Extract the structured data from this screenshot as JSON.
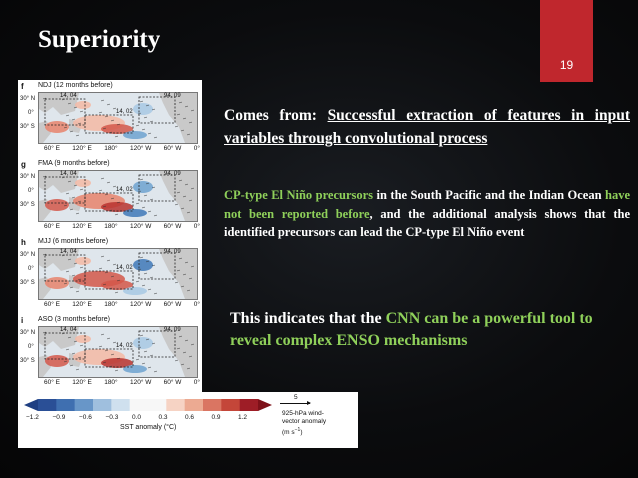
{
  "slide": {
    "title": "Superiority",
    "page_number": "19",
    "accent_color": "#c0272d",
    "highlight_color": "#8fd05a"
  },
  "figure": {
    "panels": [
      {
        "letter": "f",
        "label": "NDJ (12 months before)"
      },
      {
        "letter": "g",
        "label": "FMA (9 months before)"
      },
      {
        "letter": "h",
        "label": "MJJ (6 months before)"
      },
      {
        "letter": "i",
        "label": "ASO (3 months before)"
      }
    ],
    "lat_labels": [
      "30° N",
      "0°",
      "30° S"
    ],
    "lon_labels": [
      "60° E",
      "120° E",
      "180°",
      "120° W",
      "60° W",
      "0°"
    ],
    "box_labels": [
      "14, 04",
      "14, 02",
      "94, 09"
    ],
    "colorbar": {
      "ticks": [
        "−1.2",
        "−0.9",
        "−0.6",
        "−0.3",
        "0.0",
        "0.3",
        "0.6",
        "0.9",
        "1.2"
      ],
      "label": "SST anomaly (°C)",
      "wind_scale": "5",
      "wind_label_line1": "925-hPa wind-",
      "wind_label_line2": "vector anomaly",
      "wind_label_line3": "(m s",
      "wind_label_sup": "−1",
      "wind_label_end": ")"
    }
  },
  "text": {
    "comes_from_prefix": "Comes from: ",
    "comes_from_underlined": "Successful extraction of features in input variables through convolutional process",
    "p2_green1": "CP-type El Niño precursors",
    "p2_mid1": " in the South Pacific and the Indian Ocean ",
    "p2_green2": "have not been reported before",
    "p2_rest": ", and the additional analysis shows that the identified precursors can lead the CP-type El Niño event",
    "p3_prefix": "This indicates that the ",
    "p3_green": "CNN can be a powerful tool to reveal complex ENSO mechanisms"
  }
}
